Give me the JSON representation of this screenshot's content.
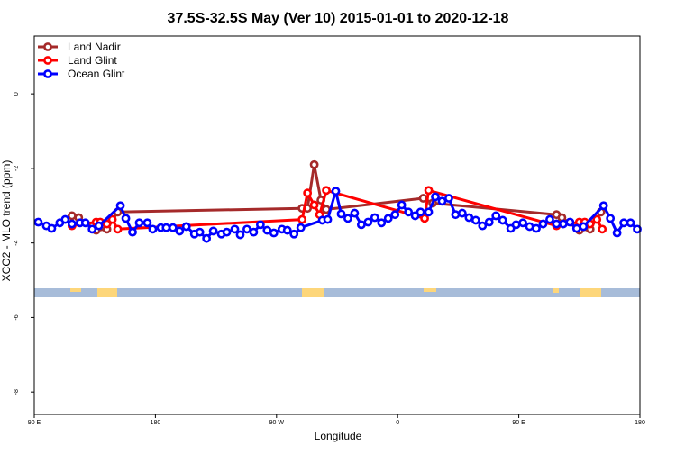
{
  "chart_data": {
    "type": "line",
    "title": "37.5S-32.5S May (Ver 10)   2015-01-01 to 2020-12-18",
    "xlabel": "Longitude",
    "ylabel": "XCO2 - MLO trend (ppm)",
    "xlim": [
      90,
      540
    ],
    "ylim": [
      -8.6,
      1.55
    ],
    "x_ticks": [
      {
        "value": 90,
        "label": "90 E"
      },
      {
        "value": 180,
        "label": "180"
      },
      {
        "value": 270,
        "label": "90 W"
      },
      {
        "value": 360,
        "label": "0"
      },
      {
        "value": 450,
        "label": "90 E"
      },
      {
        "value": 540,
        "label": "180"
      }
    ],
    "y_ticks": [
      {
        "value": 0,
        "label": "0"
      },
      {
        "value": -2,
        "label": "-2"
      },
      {
        "value": -4,
        "label": "-4"
      },
      {
        "value": -6,
        "label": "-6"
      },
      {
        "value": -8,
        "label": "-8"
      }
    ],
    "grid": false,
    "legend_position": "top-left",
    "series": [
      {
        "name": "Land Nadir",
        "color": "#a52a2a",
        "x": [
          118,
          123,
          136,
          144,
          152,
          289,
          293,
          298,
          303,
          307,
          379,
          386,
          478,
          482,
          495,
          503,
          511
        ],
        "y": [
          -3.27,
          -3.32,
          -3.66,
          -3.63,
          -3.17,
          -3.07,
          -3.07,
          -1.9,
          -2.85,
          -3.1,
          -2.8,
          -2.93,
          -3.24,
          -3.32,
          -3.66,
          -3.63,
          -3.17
        ]
      },
      {
        "name": "Land Glint",
        "color": "#ff0000",
        "x": [
          118,
          136,
          139,
          144,
          148,
          152,
          289,
          293,
          298,
          302,
          307,
          380,
          383,
          478,
          495,
          499,
          503,
          508,
          512
        ],
        "y": [
          -3.54,
          -3.44,
          -3.44,
          -3.49,
          -3.37,
          -3.63,
          -3.37,
          -2.66,
          -2.98,
          -3.24,
          -2.59,
          -3.34,
          -2.59,
          -3.54,
          -3.44,
          -3.44,
          -3.49,
          -3.37,
          -3.63
        ]
      },
      {
        "name": "Ocean Glint",
        "color": "#0000ff",
        "x": [
          93,
          99,
          103,
          109,
          113,
          118,
          124,
          128,
          133,
          138,
          154,
          158,
          163,
          168,
          174,
          178,
          184,
          188,
          193,
          198,
          203,
          209,
          213,
          218,
          223,
          229,
          233,
          239,
          243,
          248,
          253,
          258,
          263,
          268,
          274,
          278,
          283,
          288,
          304,
          308,
          314,
          318,
          323,
          328,
          333,
          338,
          343,
          348,
          353,
          358,
          363,
          368,
          373,
          377,
          383,
          388,
          393,
          398,
          403,
          408,
          413,
          418,
          423,
          428,
          433,
          438,
          444,
          448,
          453,
          458,
          463,
          468,
          473,
          478,
          483,
          488,
          493,
          498,
          513,
          518,
          523,
          528,
          533,
          538
        ],
        "y": [
          -3.44,
          -3.54,
          -3.61,
          -3.46,
          -3.37,
          -3.49,
          -3.46,
          -3.46,
          -3.63,
          -3.54,
          -3.0,
          -3.34,
          -3.71,
          -3.46,
          -3.46,
          -3.63,
          -3.59,
          -3.59,
          -3.59,
          -3.68,
          -3.56,
          -3.76,
          -3.71,
          -3.88,
          -3.68,
          -3.76,
          -3.71,
          -3.63,
          -3.78,
          -3.63,
          -3.71,
          -3.51,
          -3.66,
          -3.73,
          -3.63,
          -3.66,
          -3.76,
          -3.59,
          -3.39,
          -3.37,
          -2.61,
          -3.22,
          -3.34,
          -3.2,
          -3.51,
          -3.44,
          -3.32,
          -3.46,
          -3.34,
          -3.24,
          -2.98,
          -3.17,
          -3.27,
          -3.17,
          -3.17,
          -2.76,
          -2.88,
          -2.8,
          -3.24,
          -3.2,
          -3.32,
          -3.39,
          -3.54,
          -3.44,
          -3.27,
          -3.39,
          -3.61,
          -3.51,
          -3.46,
          -3.56,
          -3.61,
          -3.49,
          -3.37,
          -3.49,
          -3.49,
          -3.44,
          -3.61,
          -3.56,
          -3.0,
          -3.34,
          -3.73,
          -3.46,
          -3.46,
          -3.63
        ]
      }
    ],
    "colors": {
      "map_ocean": "#a7bcd9",
      "map_land": "#fdd67a"
    }
  }
}
